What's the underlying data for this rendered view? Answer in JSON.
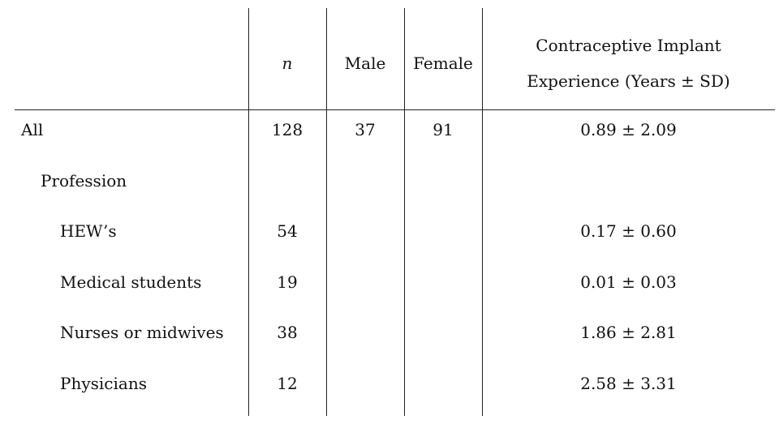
{
  "table": {
    "header": [
      "",
      "n",
      "Male",
      "Female",
      "Contraceptive Implant Experience (Years ± SD)"
    ],
    "rows": [
      [
        "All",
        "128",
        "37",
        "91",
        "0.89 ± 2.09"
      ],
      [
        "Profession",
        "",
        "",
        "",
        ""
      ],
      [
        "HEW’s",
        "54",
        "",
        "",
        "0.17 ± 0.60"
      ],
      [
        "Medical students",
        "19",
        "",
        "",
        "0.01 ± 0.03"
      ],
      [
        "Nurses or midwives",
        "38",
        "",
        "",
        "1.86 ± 2.81"
      ],
      [
        "Physicians",
        "12",
        "",
        "",
        "2.58 ± 3.31"
      ]
    ]
  }
}
